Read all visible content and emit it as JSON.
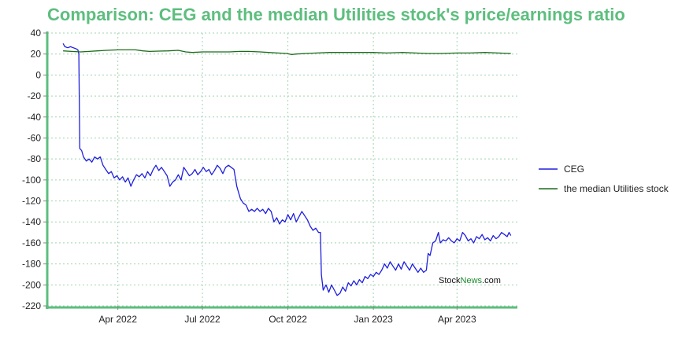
{
  "chart_data": {
    "type": "line",
    "title": "Comparison: CEG and the median Utilities stock's price/earnings ratio",
    "xlabel": "",
    "ylabel": "",
    "ylim": [
      -220,
      40
    ],
    "yticks": [
      40,
      20,
      0,
      -20,
      -40,
      -60,
      -80,
      -100,
      -120,
      -140,
      -160,
      -180,
      -200,
      -220
    ],
    "xlim": [
      "2022-01-15",
      "2023-06-05"
    ],
    "xticks": [
      {
        "date": "2022-04-01",
        "label": "Apr 2022"
      },
      {
        "date": "2022-07-01",
        "label": "Jul 2022"
      },
      {
        "date": "2022-10-01",
        "label": "Oct 2022"
      },
      {
        "date": "2023-01-01",
        "label": "Jan 2023"
      },
      {
        "date": "2023-04-01",
        "label": "Apr 2023"
      }
    ],
    "grid": true,
    "legend_position": "right",
    "watermark": {
      "part1": "Stock",
      "part2": "News",
      "part3": ".com"
    },
    "series": [
      {
        "name": "CEG",
        "color": "#1f1fdd",
        "points": [
          [
            "2022-02-01",
            30
          ],
          [
            "2022-02-03",
            27
          ],
          [
            "2022-02-06",
            26
          ],
          [
            "2022-02-09",
            27
          ],
          [
            "2022-02-12",
            26
          ],
          [
            "2022-02-15",
            25
          ],
          [
            "2022-02-17",
            24
          ],
          [
            "2022-02-18",
            20
          ],
          [
            "2022-02-19",
            -70
          ],
          [
            "2022-02-21",
            -72
          ],
          [
            "2022-02-23",
            -78
          ],
          [
            "2022-02-26",
            -82
          ],
          [
            "2022-03-01",
            -80
          ],
          [
            "2022-03-04",
            -83
          ],
          [
            "2022-03-07",
            -78
          ],
          [
            "2022-03-10",
            -80
          ],
          [
            "2022-03-13",
            -78
          ],
          [
            "2022-03-16",
            -86
          ],
          [
            "2022-03-19",
            -90
          ],
          [
            "2022-03-22",
            -94
          ],
          [
            "2022-03-25",
            -92
          ],
          [
            "2022-03-28",
            -98
          ],
          [
            "2022-03-31",
            -96
          ],
          [
            "2022-04-03",
            -100
          ],
          [
            "2022-04-06",
            -97
          ],
          [
            "2022-04-09",
            -102
          ],
          [
            "2022-04-12",
            -98
          ],
          [
            "2022-04-15",
            -106
          ],
          [
            "2022-04-18",
            -100
          ],
          [
            "2022-04-21",
            -95
          ],
          [
            "2022-04-24",
            -97
          ],
          [
            "2022-04-27",
            -94
          ],
          [
            "2022-04-30",
            -98
          ],
          [
            "2022-05-03",
            -92
          ],
          [
            "2022-05-06",
            -96
          ],
          [
            "2022-05-09",
            -90
          ],
          [
            "2022-05-12",
            -86
          ],
          [
            "2022-05-15",
            -91
          ],
          [
            "2022-05-18",
            -88
          ],
          [
            "2022-05-21",
            -92
          ],
          [
            "2022-05-24",
            -96
          ],
          [
            "2022-05-27",
            -106
          ],
          [
            "2022-05-30",
            -102
          ],
          [
            "2022-06-02",
            -100
          ],
          [
            "2022-06-05",
            -95
          ],
          [
            "2022-06-08",
            -100
          ],
          [
            "2022-06-11",
            -88
          ],
          [
            "2022-06-14",
            -92
          ],
          [
            "2022-06-17",
            -96
          ],
          [
            "2022-06-20",
            -94
          ],
          [
            "2022-06-23",
            -90
          ],
          [
            "2022-06-26",
            -95
          ],
          [
            "2022-06-29",
            -92
          ],
          [
            "2022-07-02",
            -88
          ],
          [
            "2022-07-05",
            -92
          ],
          [
            "2022-07-08",
            -90
          ],
          [
            "2022-07-11",
            -95
          ],
          [
            "2022-07-14",
            -91
          ],
          [
            "2022-07-17",
            -86
          ],
          [
            "2022-07-20",
            -89
          ],
          [
            "2022-07-23",
            -94
          ],
          [
            "2022-07-26",
            -88
          ],
          [
            "2022-07-29",
            -86
          ],
          [
            "2022-08-01",
            -88
          ],
          [
            "2022-08-04",
            -90
          ],
          [
            "2022-08-07",
            -106
          ],
          [
            "2022-08-09",
            -112
          ],
          [
            "2022-08-11",
            -118
          ],
          [
            "2022-08-14",
            -122
          ],
          [
            "2022-08-17",
            -124
          ],
          [
            "2022-08-20",
            -130
          ],
          [
            "2022-08-23",
            -128
          ],
          [
            "2022-08-26",
            -130
          ],
          [
            "2022-08-29",
            -127
          ],
          [
            "2022-09-01",
            -130
          ],
          [
            "2022-09-04",
            -128
          ],
          [
            "2022-09-07",
            -132
          ],
          [
            "2022-09-10",
            -127
          ],
          [
            "2022-09-13",
            -130
          ],
          [
            "2022-09-16",
            -140
          ],
          [
            "2022-09-19",
            -136
          ],
          [
            "2022-09-22",
            -142
          ],
          [
            "2022-09-25",
            -138
          ],
          [
            "2022-09-28",
            -140
          ],
          [
            "2022-10-01",
            -133
          ],
          [
            "2022-10-04",
            -138
          ],
          [
            "2022-10-07",
            -132
          ],
          [
            "2022-10-10",
            -140
          ],
          [
            "2022-10-13",
            -135
          ],
          [
            "2022-10-16",
            -130
          ],
          [
            "2022-10-19",
            -134
          ],
          [
            "2022-10-22",
            -138
          ],
          [
            "2022-10-25",
            -144
          ],
          [
            "2022-10-28",
            -148
          ],
          [
            "2022-10-31",
            -146
          ],
          [
            "2022-11-03",
            -150
          ],
          [
            "2022-11-05",
            -150
          ],
          [
            "2022-11-06",
            -190
          ],
          [
            "2022-11-08",
            -205
          ],
          [
            "2022-11-11",
            -200
          ],
          [
            "2022-11-14",
            -207
          ],
          [
            "2022-11-17",
            -200
          ],
          [
            "2022-11-20",
            -205
          ],
          [
            "2022-11-23",
            -210
          ],
          [
            "2022-11-26",
            -208
          ],
          [
            "2022-11-29",
            -202
          ],
          [
            "2022-12-02",
            -206
          ],
          [
            "2022-12-05",
            -198
          ],
          [
            "2022-12-08",
            -201
          ],
          [
            "2022-12-11",
            -196
          ],
          [
            "2022-12-14",
            -200
          ],
          [
            "2022-12-17",
            -195
          ],
          [
            "2022-12-20",
            -198
          ],
          [
            "2022-12-23",
            -192
          ],
          [
            "2022-12-26",
            -194
          ],
          [
            "2022-12-29",
            -190
          ],
          [
            "2023-01-01",
            -192
          ],
          [
            "2023-01-04",
            -188
          ],
          [
            "2023-01-07",
            -190
          ],
          [
            "2023-01-10",
            -186
          ],
          [
            "2023-01-13",
            -180
          ],
          [
            "2023-01-16",
            -184
          ],
          [
            "2023-01-19",
            -178
          ],
          [
            "2023-01-22",
            -182
          ],
          [
            "2023-01-25",
            -186
          ],
          [
            "2023-01-28",
            -180
          ],
          [
            "2023-01-31",
            -185
          ],
          [
            "2023-02-03",
            -178
          ],
          [
            "2023-02-06",
            -182
          ],
          [
            "2023-02-09",
            -186
          ],
          [
            "2023-02-12",
            -180
          ],
          [
            "2023-02-15",
            -184
          ],
          [
            "2023-02-18",
            -188
          ],
          [
            "2023-02-21",
            -184
          ],
          [
            "2023-02-24",
            -188
          ],
          [
            "2023-02-27",
            -186
          ],
          [
            "2023-03-01",
            -170
          ],
          [
            "2023-03-03",
            -172
          ],
          [
            "2023-03-06",
            -160
          ],
          [
            "2023-03-09",
            -158
          ],
          [
            "2023-03-12",
            -150
          ],
          [
            "2023-03-14",
            -160
          ],
          [
            "2023-03-17",
            -157
          ],
          [
            "2023-03-20",
            -158
          ],
          [
            "2023-03-23",
            -155
          ],
          [
            "2023-03-26",
            -158
          ],
          [
            "2023-03-29",
            -160
          ],
          [
            "2023-04-01",
            -156
          ],
          [
            "2023-04-04",
            -158
          ],
          [
            "2023-04-07",
            -150
          ],
          [
            "2023-04-10",
            -153
          ],
          [
            "2023-04-13",
            -158
          ],
          [
            "2023-04-16",
            -156
          ],
          [
            "2023-04-19",
            -160
          ],
          [
            "2023-04-22",
            -154
          ],
          [
            "2023-04-25",
            -156
          ],
          [
            "2023-04-28",
            -152
          ],
          [
            "2023-05-01",
            -157
          ],
          [
            "2023-05-04",
            -155
          ],
          [
            "2023-05-07",
            -158
          ],
          [
            "2023-05-10",
            -153
          ],
          [
            "2023-05-13",
            -156
          ],
          [
            "2023-05-16",
            -154
          ],
          [
            "2023-05-19",
            -150
          ],
          [
            "2023-05-22",
            -152
          ],
          [
            "2023-05-25",
            -154
          ],
          [
            "2023-05-27",
            -150
          ],
          [
            "2023-05-29",
            -153
          ]
        ]
      },
      {
        "name": "the median Utilities stock",
        "color": "#1a6b1a",
        "points": [
          [
            "2022-02-01",
            23
          ],
          [
            "2022-02-10",
            22.5
          ],
          [
            "2022-02-20",
            22
          ],
          [
            "2022-03-01",
            22.5
          ],
          [
            "2022-03-10",
            23
          ],
          [
            "2022-03-20",
            23.5
          ],
          [
            "2022-04-01",
            24
          ],
          [
            "2022-04-10",
            24
          ],
          [
            "2022-04-20",
            24
          ],
          [
            "2022-04-28",
            23
          ],
          [
            "2022-05-05",
            22.5
          ],
          [
            "2022-05-15",
            22.8
          ],
          [
            "2022-05-25",
            23
          ],
          [
            "2022-06-05",
            23.5
          ],
          [
            "2022-06-13",
            22
          ],
          [
            "2022-06-20",
            21.5
          ],
          [
            "2022-07-01",
            22
          ],
          [
            "2022-07-15",
            22
          ],
          [
            "2022-07-30",
            22
          ],
          [
            "2022-08-10",
            22.5
          ],
          [
            "2022-08-20",
            22.5
          ],
          [
            "2022-09-01",
            22
          ],
          [
            "2022-09-10",
            21.5
          ],
          [
            "2022-09-20",
            21
          ],
          [
            "2022-09-30",
            20.5
          ],
          [
            "2022-10-05",
            19.5
          ],
          [
            "2022-10-10",
            20
          ],
          [
            "2022-10-20",
            20.5
          ],
          [
            "2022-11-01",
            21
          ],
          [
            "2022-11-15",
            21.5
          ],
          [
            "2022-12-01",
            21.5
          ],
          [
            "2022-12-15",
            21.5
          ],
          [
            "2023-01-01",
            21.5
          ],
          [
            "2023-01-15",
            21
          ],
          [
            "2023-02-01",
            21.5
          ],
          [
            "2023-02-15",
            21
          ],
          [
            "2023-03-01",
            20.5
          ],
          [
            "2023-03-15",
            20.5
          ],
          [
            "2023-04-01",
            21
          ],
          [
            "2023-04-15",
            21
          ],
          [
            "2023-05-01",
            21.5
          ],
          [
            "2023-05-15",
            21
          ],
          [
            "2023-05-29",
            20.5
          ]
        ]
      }
    ]
  }
}
